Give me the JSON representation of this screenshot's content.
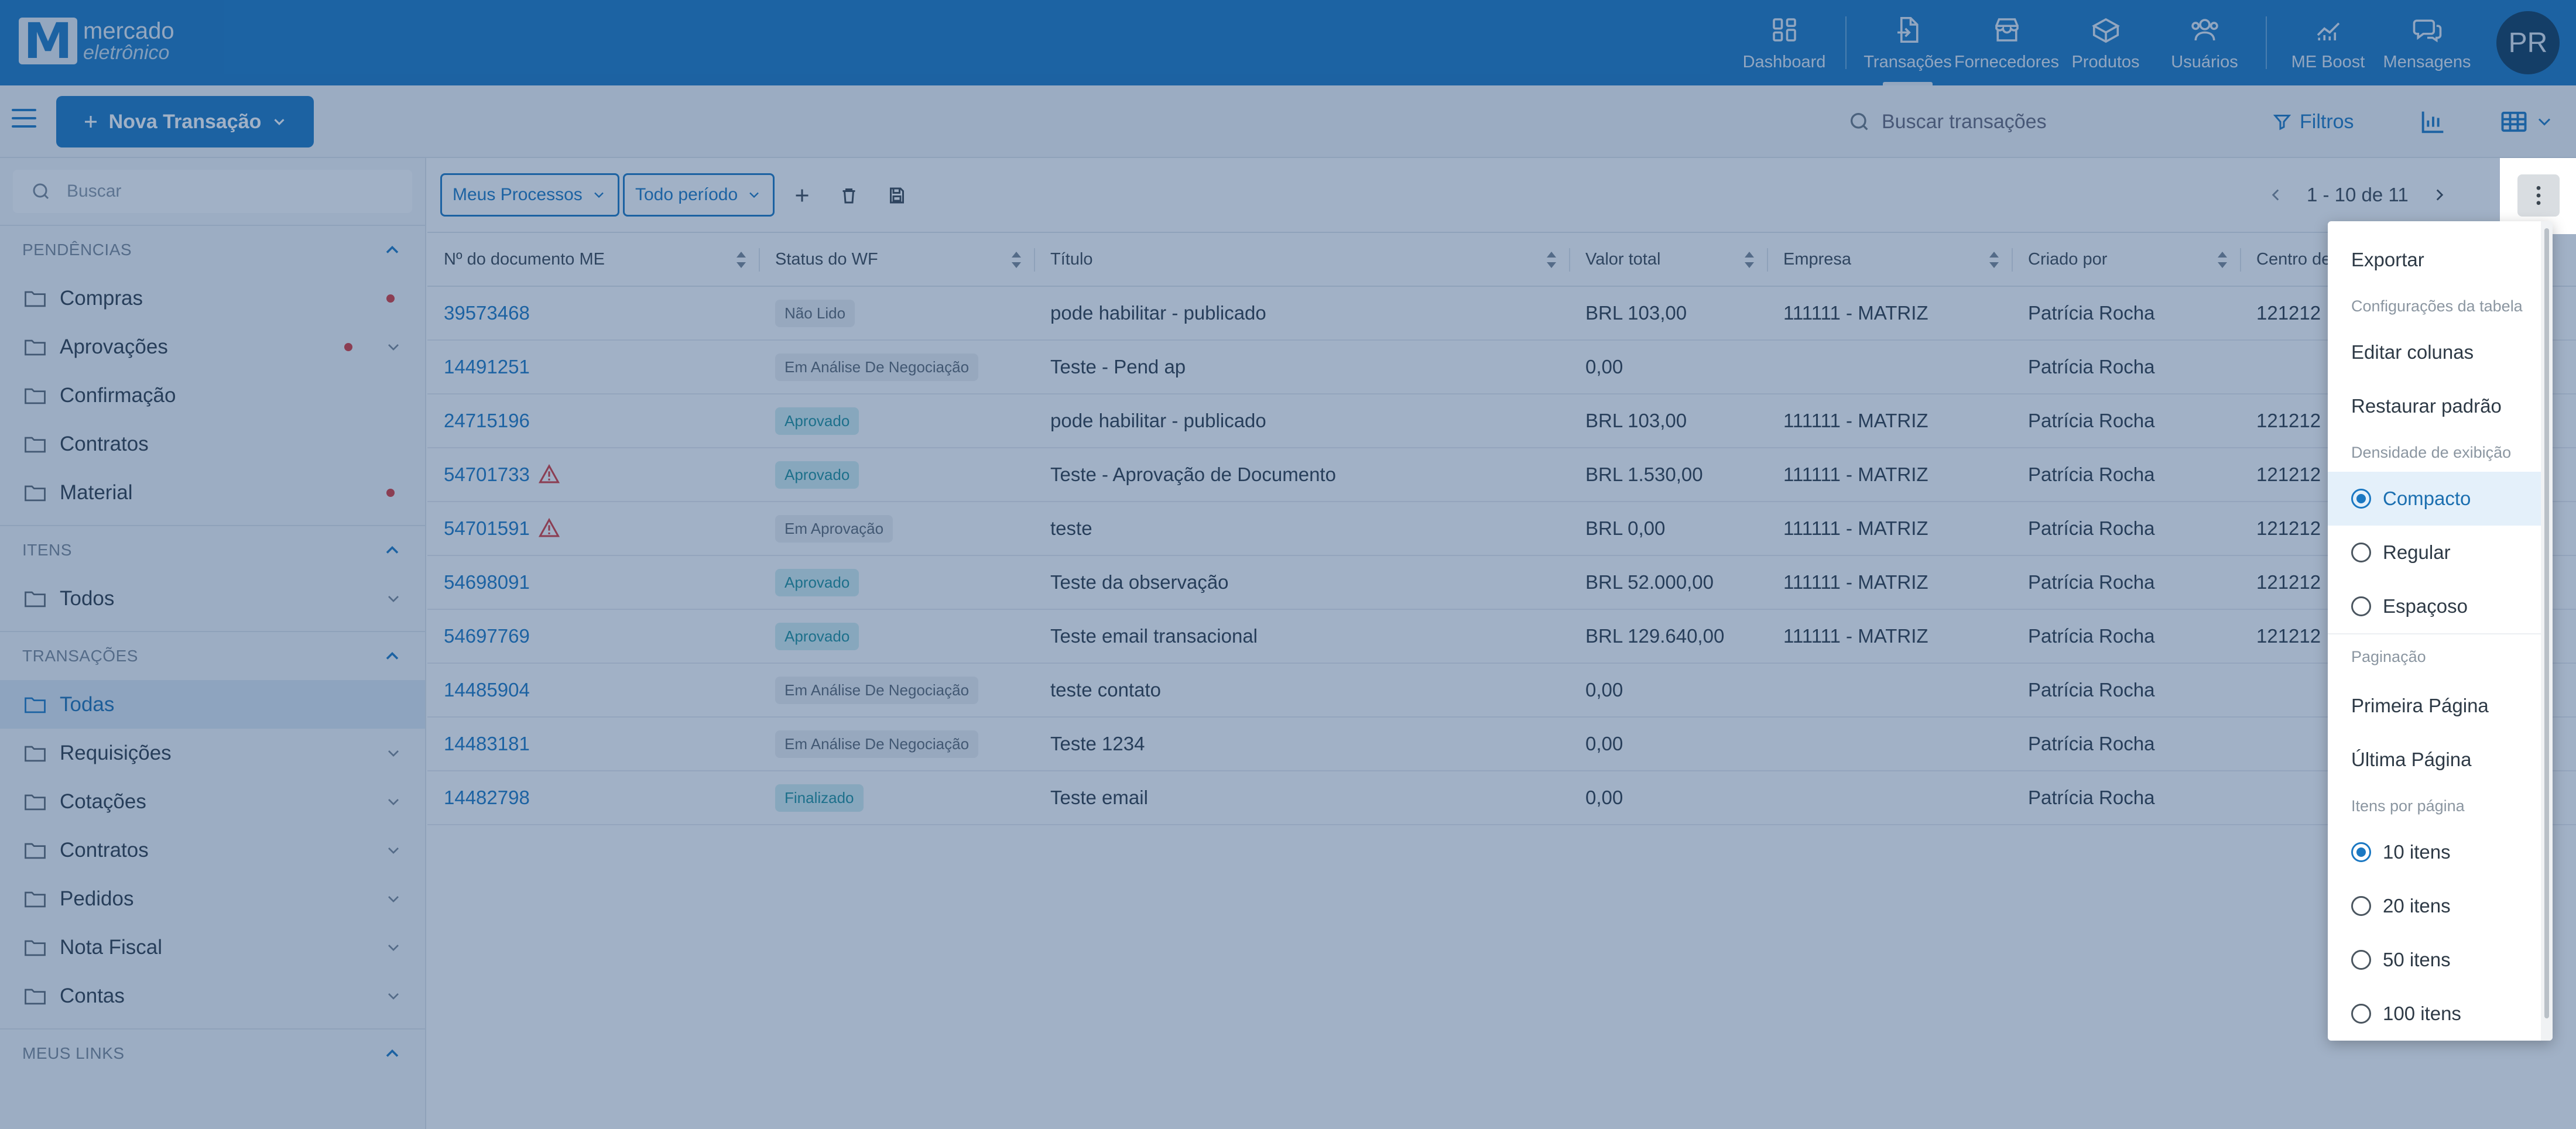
{
  "logo": {
    "line1": "mercado",
    "line2": "eletrônico",
    "mark": "M"
  },
  "nav": [
    {
      "label": "Dashboard",
      "icon": "dashboard-icon"
    },
    {
      "label": "Transações",
      "icon": "transactions-icon",
      "active": true
    },
    {
      "label": "Fornecedores",
      "icon": "store-icon"
    },
    {
      "label": "Produtos",
      "icon": "box-icon"
    },
    {
      "label": "Usuários",
      "icon": "users-icon"
    },
    {
      "label": "ME Boost",
      "icon": "chart-line-icon"
    },
    {
      "label": "Mensagens",
      "icon": "chat-icon"
    }
  ],
  "avatar": "PR",
  "toolbar": {
    "new_button": "Nova Transação",
    "search_placeholder": "Buscar transações",
    "filters": "Filtros"
  },
  "sidebar": {
    "search_placeholder": "Buscar",
    "sections": [
      {
        "title": "PENDÊNCIAS",
        "items": [
          "Compras",
          "Aprovações",
          "Confirmação",
          "Contratos",
          "Material"
        ]
      },
      {
        "title": "ITENS",
        "items": [
          "Todos"
        ]
      },
      {
        "title": "TRANSAÇÕES",
        "items": [
          "Todas",
          "Requisições",
          "Cotações",
          "Contratos",
          "Pedidos",
          "Nota Fiscal",
          "Contas"
        ]
      },
      {
        "title": "MEUS LINKS"
      }
    ]
  },
  "filters": {
    "process": "Meus Processos",
    "period": "Todo período"
  },
  "pager": {
    "range": "1 - 10 de 11"
  },
  "table": {
    "columns": [
      "Nº do documento ME",
      "Status do WF",
      "Título",
      "Valor total",
      "Empresa",
      "Criado por",
      "Centro de"
    ],
    "rows": [
      {
        "doc": "39573468",
        "status": "Não Lido",
        "title": "pode habilitar - publicado",
        "value": "BRL 103,00",
        "company": "111111 - MATRIZ",
        "creator": "Patrícia Rocha",
        "center": "121212"
      },
      {
        "doc": "14491251",
        "status": "Em Análise De Negociação",
        "title": "Teste - Pend ap",
        "value": "0,00",
        "company": "",
        "creator": "Patrícia Rocha",
        "center": ""
      },
      {
        "doc": "24715196",
        "status": "Aprovado",
        "title": "pode habilitar - publicado",
        "value": "BRL 103,00",
        "company": "111111 - MATRIZ",
        "creator": "Patrícia Rocha",
        "center": "121212"
      },
      {
        "doc": "54701733",
        "status": "Aprovado",
        "title": "Teste - Aprovação de Documento",
        "value": "BRL 1.530,00",
        "company": "111111 - MATRIZ",
        "creator": "Patrícia Rocha",
        "center": "121212"
      },
      {
        "doc": "54701591",
        "status": "Em Aprovação",
        "title": "teste",
        "value": "BRL 0,00",
        "company": "111111 - MATRIZ",
        "creator": "Patrícia Rocha",
        "center": "121212"
      },
      {
        "doc": "54698091",
        "status": "Aprovado",
        "title": "Teste da observação",
        "value": "BRL 52.000,00",
        "company": "111111 - MATRIZ",
        "creator": "Patrícia Rocha",
        "center": "121212"
      },
      {
        "doc": "54697769",
        "status": "Aprovado",
        "title": "Teste email transacional",
        "value": "BRL 129.640,00",
        "company": "111111 - MATRIZ",
        "creator": "Patrícia Rocha",
        "center": "121212"
      },
      {
        "doc": "14485904",
        "status": "Em Análise De Negociação",
        "title": "teste contato",
        "value": "0,00",
        "company": "",
        "creator": "Patrícia Rocha",
        "center": ""
      },
      {
        "doc": "14483181",
        "status": "Em Análise De Negociação",
        "title": "Teste 1234",
        "value": "0,00",
        "company": "",
        "creator": "Patrícia Rocha",
        "center": ""
      },
      {
        "doc": "14482798",
        "status": "Finalizado",
        "title": "Teste email",
        "value": "0,00",
        "company": "",
        "creator": "Patrícia Rocha",
        "center": ""
      }
    ]
  },
  "menu": {
    "export": "Exportar",
    "table_settings": "Configurações da tabela",
    "edit_columns": "Editar colunas",
    "restore_default": "Restaurar padrão",
    "density_header": "Densidade de exibição",
    "density": [
      "Compacto",
      "Regular",
      "Espaçoso"
    ],
    "pagination_header": "Paginação",
    "first_page": "Primeira Página",
    "last_page": "Última Página",
    "per_page_header": "Itens por página",
    "per_page": [
      "10 itens",
      "20 itens",
      "50 itens",
      "100 itens"
    ]
  },
  "colors": {
    "brand": "#1b78c2",
    "alert": "#d93a3a"
  }
}
